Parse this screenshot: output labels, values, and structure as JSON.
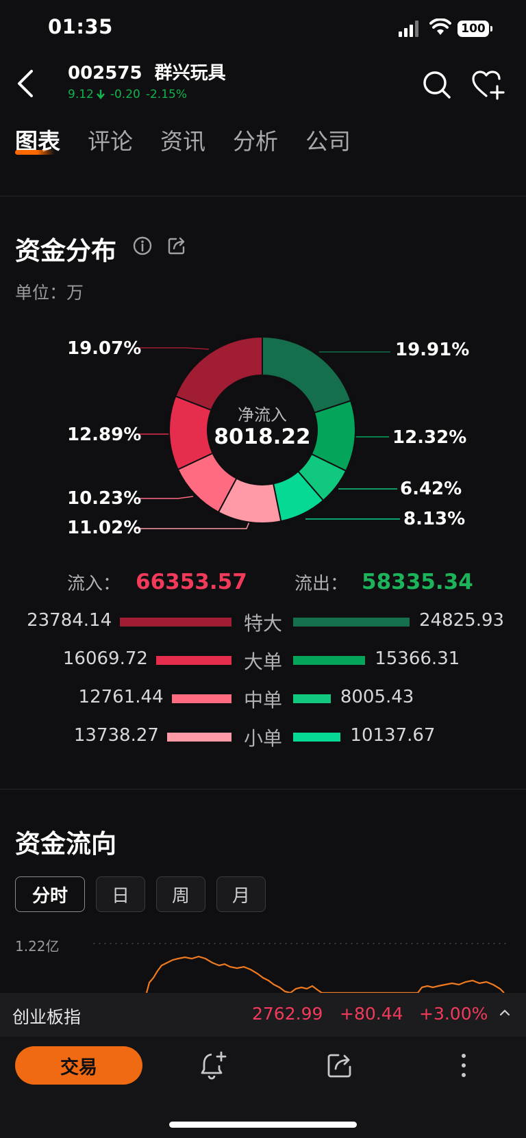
{
  "status_bar": {
    "time": "01:35",
    "battery": "100"
  },
  "header": {
    "code": "002575",
    "name": "群兴玩具",
    "price": "9.12",
    "change": "-0.20",
    "change_pct": "-2.15%"
  },
  "tabs": [
    "图表",
    "评论",
    "资讯",
    "分析",
    "公司"
  ],
  "fund_distribution": {
    "title": "资金分布",
    "unit_label": "单位：",
    "unit_value": "万",
    "center_label": "净流入",
    "center_value": "8018.22",
    "slices": [
      {
        "pct_label": "19.91%",
        "value": 19.91,
        "color": "#156f4c",
        "side": "out"
      },
      {
        "pct_label": "12.32%",
        "value": 12.32,
        "color": "#04a55a",
        "side": "out"
      },
      {
        "pct_label": "6.42%",
        "value": 6.42,
        "color": "#10c97e",
        "side": "out"
      },
      {
        "pct_label": "8.13%",
        "value": 8.13,
        "color": "#06d993",
        "side": "out"
      },
      {
        "pct_label": "11.02%",
        "value": 11.02,
        "color": "#ff9aa6",
        "side": "in"
      },
      {
        "pct_label": "10.23%",
        "value": 10.23,
        "color": "#ff6b81",
        "side": "in"
      },
      {
        "pct_label": "12.89%",
        "value": 12.89,
        "color": "#e62d4e",
        "side": "in"
      },
      {
        "pct_label": "19.07%",
        "value": 19.07,
        "color": "#a11d33",
        "side": "in"
      }
    ],
    "inflow_label": "流入：",
    "inflow_value": "66353.57",
    "outflow_label": "流出：",
    "outflow_value": "58335.34",
    "rows": [
      {
        "label": "特大",
        "in_value": "23784.14",
        "out_value": "24825.93",
        "in_num": 23784.14,
        "out_num": 24825.93,
        "in_color": "#a11d33",
        "out_color": "#156f4c"
      },
      {
        "label": "大单",
        "in_value": "16069.72",
        "out_value": "15366.31",
        "in_num": 16069.72,
        "out_num": 15366.31,
        "in_color": "#e62d4e",
        "out_color": "#04a55a"
      },
      {
        "label": "中单",
        "in_value": "12761.44",
        "out_value": "8005.43",
        "in_num": 12761.44,
        "out_num": 8005.43,
        "in_color": "#ff6b81",
        "out_color": "#10c97e"
      },
      {
        "label": "小单",
        "in_value": "13738.27",
        "out_value": "10137.67",
        "in_num": 13738.27,
        "out_num": 10137.67,
        "in_color": "#ff9aa6",
        "out_color": "#06d993"
      }
    ]
  },
  "fund_flow": {
    "title": "资金流向",
    "periods": [
      "分时",
      "日",
      "周",
      "月"
    ],
    "y_label": "1.22亿"
  },
  "ticker": {
    "name": "创业板指",
    "price": "2762.99",
    "change": "+80.44",
    "change_pct": "+3.00%"
  },
  "bottom": {
    "trade_label": "交易"
  },
  "colors": {
    "accent": "#f06a14",
    "up": "#f23a5a",
    "down": "#1cb35a"
  }
}
